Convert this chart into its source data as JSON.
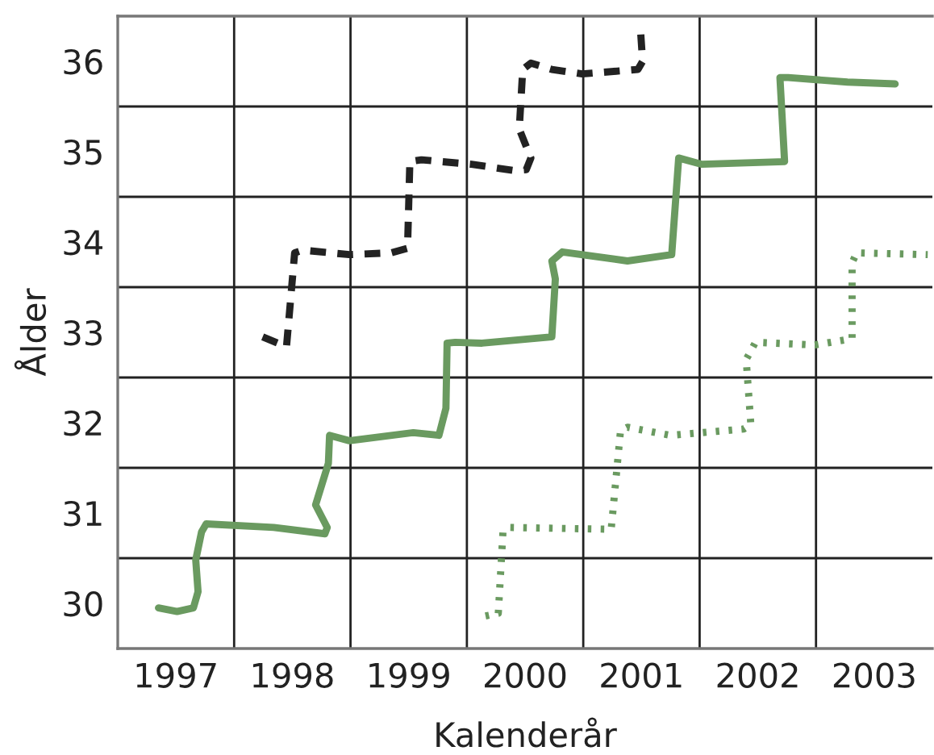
{
  "chart_data": {
    "type": "line",
    "xlabel": "Kalenderår",
    "ylabel": "Ålder",
    "xlim": [
      1996.5,
      2003.5
    ],
    "ylim": [
      29.5,
      36.5
    ],
    "xticks": [
      1997,
      1998,
      1999,
      2000,
      2001,
      2002,
      2003
    ],
    "yticks": [
      30,
      31,
      32,
      33,
      34,
      35,
      36
    ],
    "grid": true,
    "series": [
      {
        "color": "#222222",
        "line_style": "dashed",
        "x": [
          1997.745,
          1997.95,
          1998.02,
          1998.09,
          1998.49,
          1998.85,
          1998.99,
          1999.01,
          1999.11,
          1999.54,
          1999.91,
          2000.01,
          2000.05,
          1999.95,
          1999.98,
          2000.05,
          2000.23,
          2000.49,
          2000.97,
          2001.01,
          2000.99
        ],
        "values": [
          32.95,
          32.84,
          33.88,
          33.91,
          33.86,
          33.88,
          33.93,
          34.89,
          34.91,
          34.86,
          34.79,
          34.8,
          34.93,
          35.25,
          35.91,
          35.98,
          35.91,
          35.86,
          35.91,
          36.0,
          36.38
        ]
      },
      {
        "color": "#6a9a60",
        "line_style": "solid",
        "x": [
          1996.85,
          1997.01,
          1997.15,
          1997.19,
          1997.17,
          1997.22,
          1997.26,
          1997.84,
          1998.28,
          1998.3,
          1998.2,
          1998.31,
          1998.32,
          1998.49,
          1999.04,
          1999.26,
          1999.32,
          1999.33,
          1999.4,
          1999.63,
          2000.23,
          2000.26,
          2000.23,
          2000.32,
          2000.88,
          2001.26,
          2001.32,
          2001.52,
          2002.23,
          2002.19,
          2002.26,
          2002.77,
          2003.18
        ],
        "values": [
          29.95,
          29.91,
          29.95,
          30.13,
          30.48,
          30.79,
          30.88,
          30.84,
          30.77,
          30.84,
          31.09,
          31.55,
          31.86,
          31.8,
          31.89,
          31.86,
          32.16,
          32.88,
          32.89,
          32.88,
          32.95,
          33.59,
          33.79,
          33.89,
          33.79,
          33.86,
          34.93,
          34.86,
          34.89,
          35.82,
          35.82,
          35.77,
          35.75
        ]
      },
      {
        "color": "#6a9a60",
        "line_style": "dotted",
        "x": [
          1999.66,
          1999.77,
          1999.81,
          1999.87,
          2000.74,
          2000.82,
          2000.88,
          2001.25,
          2001.88,
          2001.94,
          2001.9,
          2001.98,
          2002.49,
          2002.81,
          2002.81,
          2002.85,
          2003.46
        ],
        "values": [
          29.86,
          29.89,
          30.79,
          30.84,
          30.82,
          31.91,
          31.95,
          31.86,
          31.93,
          31.98,
          32.7,
          32.89,
          32.86,
          32.93,
          33.77,
          33.88,
          33.86
        ]
      }
    ]
  }
}
